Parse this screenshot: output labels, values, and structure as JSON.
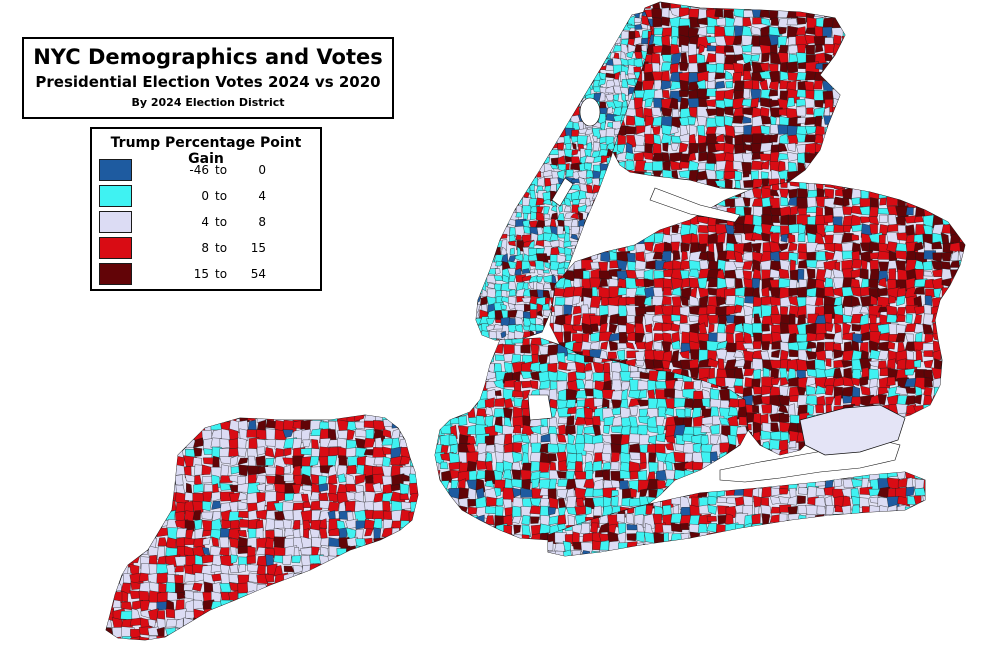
{
  "title": {
    "line1": "NYC Demographics and Votes",
    "line2": "Presidential Election Votes 2024 vs 2020",
    "line3": "By 2024 Election District"
  },
  "legend": {
    "title": "Trump Percentage Point Gain",
    "items": [
      {
        "low": "-46",
        "sep": "to",
        "high": "0",
        "color": "#1e5ba0"
      },
      {
        "low": "0",
        "sep": "to",
        "high": "4",
        "color": "#3ff2f2"
      },
      {
        "low": "4",
        "sep": "to",
        "high": "8",
        "color": "#dcdcf4"
      },
      {
        "low": "8",
        "sep": "to",
        "high": "15",
        "color": "#d90c14"
      },
      {
        "low": "15",
        "sep": "to",
        "high": "54",
        "color": "#620407"
      }
    ]
  },
  "regions": {
    "staten_island": {
      "mix": [
        0.03,
        0.12,
        0.35,
        0.43,
        0.07
      ]
    },
    "bronx": {
      "mix": [
        0.04,
        0.22,
        0.12,
        0.32,
        0.3
      ]
    },
    "manhattan": {
      "mix": [
        0.08,
        0.42,
        0.32,
        0.13,
        0.05
      ]
    },
    "brooklyn": {
      "mix": [
        0.04,
        0.38,
        0.18,
        0.26,
        0.14
      ]
    },
    "queens": {
      "mix": [
        0.03,
        0.12,
        0.15,
        0.42,
        0.28
      ]
    },
    "rockaway": {
      "mix": [
        0.05,
        0.18,
        0.37,
        0.33,
        0.07
      ]
    }
  }
}
